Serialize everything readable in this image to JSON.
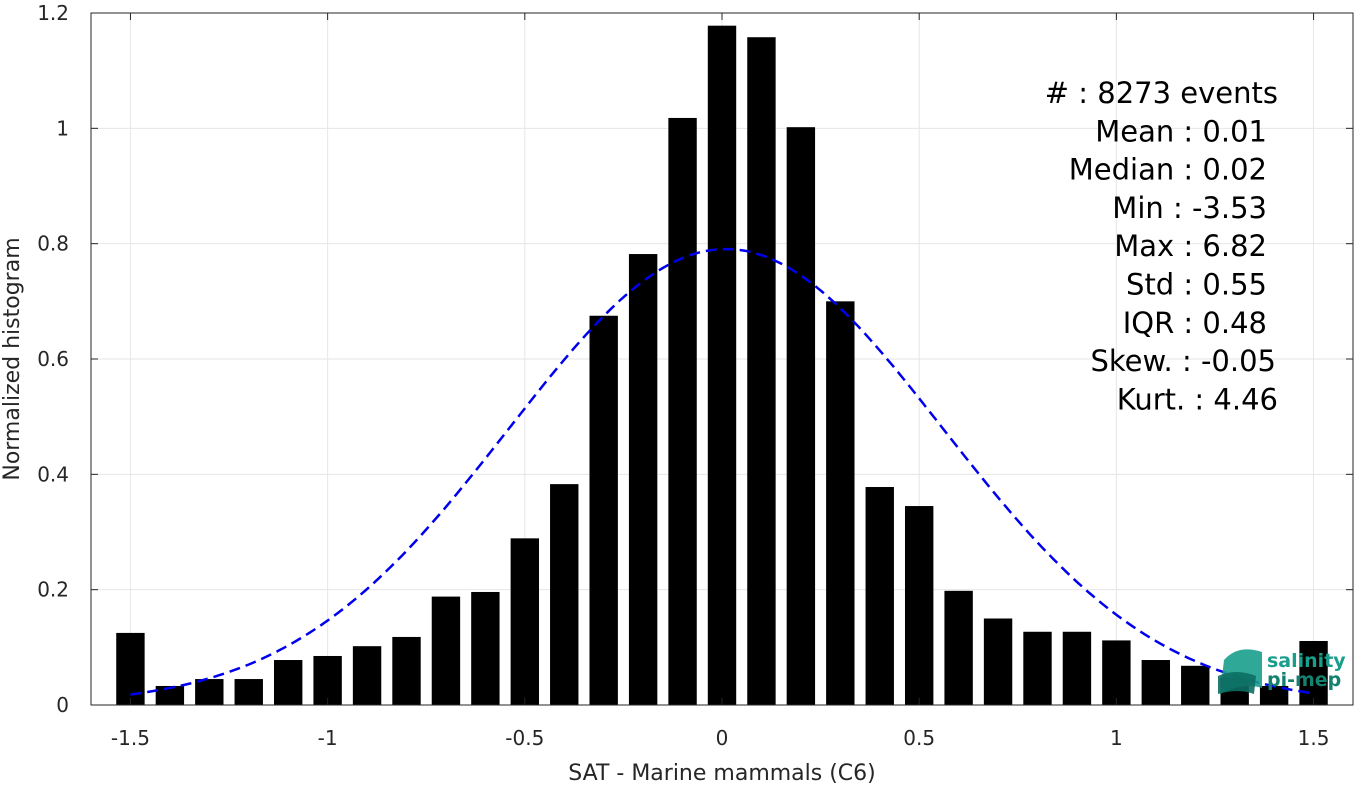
{
  "chart_data": {
    "type": "bar",
    "xlabel": "SAT - Marine mammals (C6)",
    "ylabel": "Normalized histogram",
    "xlim": [
      -1.6,
      1.6
    ],
    "ylim": [
      0,
      1.2
    ],
    "xticks": [
      -1.5,
      -1,
      -0.5,
      0,
      0.5,
      1,
      1.5
    ],
    "xtick_labels": [
      "-1.5",
      "-1",
      "-0.5",
      "0",
      "0.5",
      "1",
      "1.5"
    ],
    "yticks": [
      0,
      0.2,
      0.4,
      0.6,
      0.8,
      1,
      1.2
    ],
    "ytick_labels": [
      "0",
      "0.2",
      "0.4",
      "0.6",
      "0.8",
      "1",
      "1.2"
    ],
    "grid": true,
    "series": [
      {
        "type": "bar",
        "color": "#000000",
        "x": [
          -1.5,
          -1.4,
          -1.3,
          -1.2,
          -1.1,
          -1.0,
          -0.9,
          -0.8,
          -0.7,
          -0.6,
          -0.5,
          -0.4,
          -0.3,
          -0.2,
          -0.1,
          0.0,
          0.1,
          0.2,
          0.3,
          0.4,
          0.5,
          0.6,
          0.7,
          0.8,
          0.9,
          1.0,
          1.1,
          1.2,
          1.3,
          1.4,
          1.5
        ],
        "values": [
          0.125,
          0.033,
          0.045,
          0.045,
          0.078,
          0.085,
          0.102,
          0.118,
          0.188,
          0.196,
          0.289,
          0.383,
          0.675,
          0.782,
          1.018,
          1.178,
          1.158,
          1.002,
          0.7,
          0.378,
          0.345,
          0.198,
          0.15,
          0.127,
          0.127,
          0.112,
          0.078,
          0.068,
          0.047,
          0.033,
          0.111
        ]
      },
      {
        "type": "line",
        "style": "dashed",
        "color": "#0000ee",
        "mean": 0.01,
        "std": 0.55,
        "x_range": [
          -1.5,
          1.5
        ]
      }
    ]
  },
  "stats": [
    {
      "label": "#  ",
      "value": "8273 events"
    },
    {
      "label": "Mean",
      "value": "0.01"
    },
    {
      "label": "Median",
      "value": "0.02"
    },
    {
      "label": "Min",
      "value": "-3.53"
    },
    {
      "label": "Max",
      "value": "6.82"
    },
    {
      "label": "Std",
      "value": "0.55"
    },
    {
      "label": "IQR",
      "value": "0.48"
    },
    {
      "label": "Skew.",
      "value": "-0.05"
    },
    {
      "label": "Kurt.",
      "value": "4.46"
    }
  ],
  "logo": {
    "line1": "salinity",
    "line2": "pi-mep",
    "color": "#1a9e8c"
  }
}
